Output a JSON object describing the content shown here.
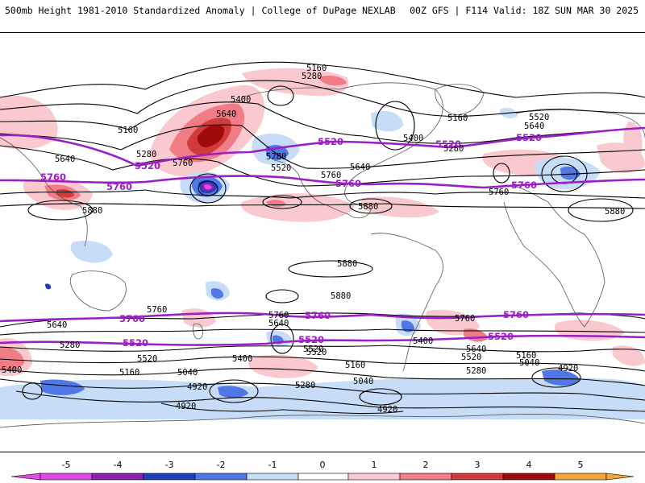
{
  "header": {
    "title": "500mb Height 1981-2010 Standardized Anomaly | College of DuPage NEXLAB",
    "run_info": "00Z GFS | F114 Valid: 18Z SUN MAR 30 2025"
  },
  "colors": {
    "neg5": "#e04be0",
    "neg4": "#8a1fb0",
    "neg3": "#1f3fb8",
    "neg2": "#4f77e6",
    "neg1": "#c6dcf7",
    "zero": "#ffffff",
    "pos1": "#f9c9cf",
    "pos2": "#f07c86",
    "pos3": "#d23b3b",
    "pos4": "#9e0b0b",
    "pos5": "#f3a73a",
    "highlight_contour": "#9b1fc4",
    "contour": "#000000",
    "coast": "#555555"
  },
  "map": {
    "contour_labels": [
      {
        "text": "5160"
      },
      {
        "text": "5280"
      },
      {
        "text": "5400"
      },
      {
        "text": "5640"
      },
      {
        "text": "5160"
      },
      {
        "text": "5280"
      },
      {
        "text": "5640"
      },
      {
        "text": "5760"
      },
      {
        "text": "5280"
      },
      {
        "text": "5520"
      },
      {
        "text": "5760"
      },
      {
        "text": "5640"
      },
      {
        "text": "5400"
      },
      {
        "text": "5280"
      },
      {
        "text": "5160"
      },
      {
        "text": "5520"
      },
      {
        "text": "5640"
      },
      {
        "text": "5760"
      },
      {
        "text": "5880"
      },
      {
        "text": "5880"
      },
      {
        "text": "5880"
      },
      {
        "text": "5880"
      },
      {
        "text": "5880"
      },
      {
        "text": "5760"
      },
      {
        "text": "5640"
      },
      {
        "text": "5280"
      },
      {
        "text": "5520"
      },
      {
        "text": "5400"
      },
      {
        "text": "5160"
      },
      {
        "text": "5040"
      },
      {
        "text": "4920"
      },
      {
        "text": "4920"
      },
      {
        "text": "5760"
      },
      {
        "text": "5640"
      },
      {
        "text": "5520"
      },
      {
        "text": "5400"
      },
      {
        "text": "5280"
      },
      {
        "text": "5160"
      },
      {
        "text": "5040"
      },
      {
        "text": "4920"
      },
      {
        "text": "5760"
      },
      {
        "text": "5640"
      },
      {
        "text": "5520"
      },
      {
        "text": "5160"
      },
      {
        "text": "5040"
      },
      {
        "text": "5280"
      },
      {
        "text": "5400"
      },
      {
        "text": "4920"
      },
      {
        "text": "5520"
      }
    ],
    "highlight_labels": [
      {
        "text": "5520"
      },
      {
        "text": "5520"
      },
      {
        "text": "5760"
      },
      {
        "text": "5760"
      },
      {
        "text": "5520"
      },
      {
        "text": "5760"
      },
      {
        "text": "5760"
      },
      {
        "text": "5520"
      },
      {
        "text": "5760"
      },
      {
        "text": "5760"
      },
      {
        "text": "5520"
      },
      {
        "text": "5520"
      },
      {
        "text": "5520"
      },
      {
        "text": "5760"
      }
    ]
  },
  "colorbar": {
    "ticks": [
      "-5",
      "-4",
      "-3",
      "-2",
      "-1",
      "0",
      "1",
      "2",
      "3",
      "4",
      "5"
    ]
  }
}
